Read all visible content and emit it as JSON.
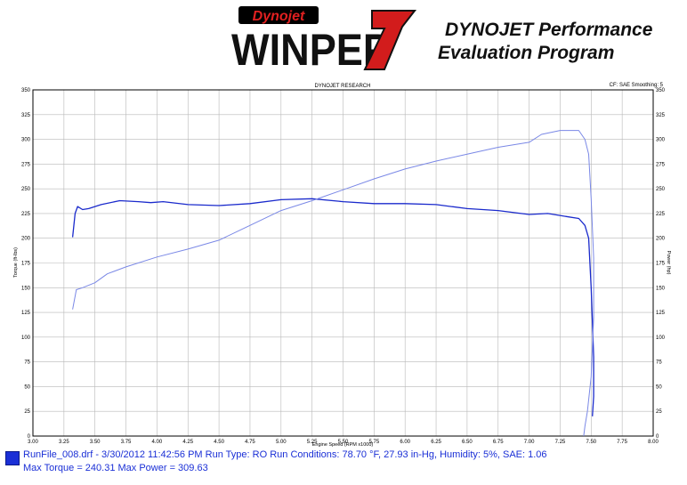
{
  "branding": {
    "maker": "Dynojet",
    "product": "WINPEP",
    "version_mark": "7",
    "tagline_line1": "DYNOJET Performance",
    "tagline_line2": "Evaluation Program"
  },
  "chart_data": {
    "type": "line",
    "title": "DYNOJET RESEARCH",
    "corner_note": "CF: SAE  Smoothing: 5",
    "xlabel": "Engine Speed (RPM x1000)",
    "ylabel_left": "Torque (ft-lbs)",
    "ylabel_right": "Power (hp)",
    "xlim": [
      3.0,
      8.0
    ],
    "ylim": [
      0,
      350
    ],
    "x_ticks": [
      "3.00",
      "3.25",
      "3.50",
      "3.75",
      "4.00",
      "4.25",
      "4.50",
      "4.75",
      "5.00",
      "5.25",
      "5.50",
      "5.75",
      "6.00",
      "6.25",
      "6.50",
      "6.75",
      "7.00",
      "7.25",
      "7.50",
      "7.75",
      "8.00"
    ],
    "y_ticks": [
      "0",
      "25",
      "50",
      "75",
      "100",
      "125",
      "150",
      "175",
      "200",
      "225",
      "250",
      "275",
      "300",
      "325",
      "350"
    ],
    "grid": true,
    "series": [
      {
        "key": "torque",
        "color": "#1a2acc",
        "points": [
          [
            3.32,
            201
          ],
          [
            3.34,
            225
          ],
          [
            3.36,
            232
          ],
          [
            3.4,
            229
          ],
          [
            3.45,
            230
          ],
          [
            3.55,
            234
          ],
          [
            3.7,
            238
          ],
          [
            3.85,
            237
          ],
          [
            3.95,
            236
          ],
          [
            4.05,
            237
          ],
          [
            4.25,
            234
          ],
          [
            4.5,
            233
          ],
          [
            4.75,
            235
          ],
          [
            5.0,
            239
          ],
          [
            5.25,
            240
          ],
          [
            5.5,
            237
          ],
          [
            5.75,
            235
          ],
          [
            6.0,
            235
          ],
          [
            6.25,
            234
          ],
          [
            6.5,
            230
          ],
          [
            6.75,
            228
          ],
          [
            7.0,
            224
          ],
          [
            7.15,
            225
          ],
          [
            7.3,
            222
          ],
          [
            7.4,
            220
          ],
          [
            7.45,
            213
          ],
          [
            7.48,
            200
          ],
          [
            7.5,
            150
          ],
          [
            7.52,
            80
          ],
          [
            7.52,
            40
          ],
          [
            7.51,
            20
          ]
        ]
      },
      {
        "key": "power",
        "color": "#7a88e6",
        "points": [
          [
            3.32,
            128
          ],
          [
            3.35,
            148
          ],
          [
            3.4,
            150
          ],
          [
            3.5,
            155
          ],
          [
            3.6,
            164
          ],
          [
            3.75,
            171
          ],
          [
            4.0,
            181
          ],
          [
            4.25,
            189
          ],
          [
            4.5,
            198
          ],
          [
            4.75,
            213
          ],
          [
            5.0,
            228
          ],
          [
            5.25,
            238
          ],
          [
            5.5,
            249
          ],
          [
            5.75,
            260
          ],
          [
            6.0,
            270
          ],
          [
            6.25,
            278
          ],
          [
            6.5,
            285
          ],
          [
            6.75,
            292
          ],
          [
            7.0,
            297
          ],
          [
            7.1,
            305
          ],
          [
            7.25,
            309
          ],
          [
            7.4,
            309
          ],
          [
            7.45,
            300
          ],
          [
            7.48,
            285
          ],
          [
            7.5,
            240
          ],
          [
            7.52,
            180
          ],
          [
            7.52,
            120
          ],
          [
            7.5,
            60
          ],
          [
            7.47,
            25
          ],
          [
            7.45,
            10
          ],
          [
            7.44,
            0
          ]
        ]
      }
    ]
  },
  "footer": {
    "run_info": "RunFile_008.drf - 3/30/2012 11:42:56 PM  Run Type: RO  Run Conditions: 78.70 °F, 27.93 in-Hg,  Humidity:  5%, SAE: 1.06",
    "max_info": "Max Torque = 240.31  Max Power = 309.63"
  }
}
